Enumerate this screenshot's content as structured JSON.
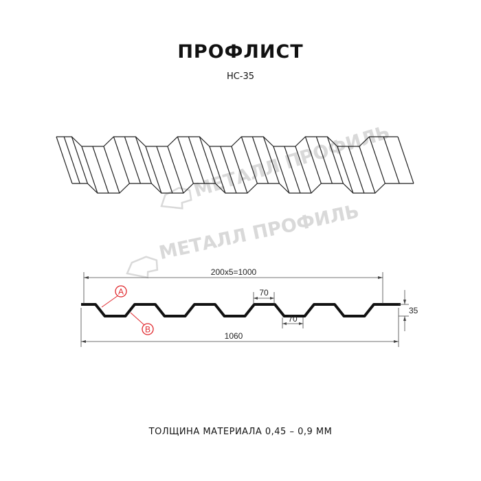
{
  "header": {
    "title": "ПРОФЛИСТ",
    "model": "НС-35"
  },
  "watermark": "МЕТАЛЛ ПРОФИЛЬ",
  "drawing": {
    "pitch_label": "200x5=1000",
    "total_width_label": "1060",
    "top_flat_label": "70",
    "bottom_flat_label": "70",
    "height_label": "35",
    "marker_a": "A",
    "marker_b": "B",
    "marker_color": "#e0262b"
  },
  "footer": {
    "thickness": "ТОЛЩИНА МАТЕРИАЛА 0,45 – 0,9 ММ"
  }
}
